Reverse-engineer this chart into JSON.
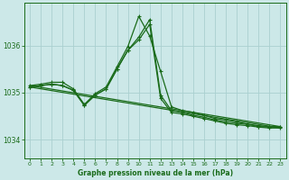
{
  "title": "Graphe pression niveau de la mer (hPa)",
  "bg_color": "#cce8e8",
  "grid_color": "#aad0d0",
  "line_color": "#1a6b1a",
  "xlim": [
    -0.5,
    23.5
  ],
  "ylim": [
    1033.6,
    1036.9
  ],
  "yticks": [
    1034,
    1035,
    1036
  ],
  "xticks": [
    0,
    1,
    2,
    3,
    4,
    5,
    6,
    7,
    8,
    9,
    10,
    11,
    12,
    13,
    14,
    15,
    16,
    17,
    18,
    19,
    20,
    21,
    22,
    23
  ],
  "line1_x": [
    0,
    1,
    2,
    3,
    4,
    5,
    6,
    7,
    8,
    9,
    10,
    11,
    12,
    13,
    14,
    15,
    16,
    17,
    18,
    19,
    20,
    21,
    22,
    23
  ],
  "line1_y": [
    1035.15,
    1035.18,
    1035.22,
    1035.22,
    1035.08,
    1034.75,
    1034.98,
    1035.12,
    1035.55,
    1035.98,
    1036.62,
    1036.2,
    1035.45,
    1034.7,
    1034.62,
    1034.58,
    1034.52,
    1034.45,
    1034.42,
    1034.38,
    1034.33,
    1034.3,
    1034.28,
    1034.28
  ],
  "line2_x": [
    0,
    1,
    2,
    3,
    4,
    5,
    6,
    7,
    8,
    9,
    10,
    11,
    12,
    13,
    14,
    15,
    16,
    17,
    18,
    19,
    20,
    21,
    22,
    23
  ],
  "line2_y": [
    1035.12,
    1035.15,
    1035.18,
    1035.15,
    1035.05,
    1034.73,
    1034.95,
    1035.08,
    1035.5,
    1035.9,
    1036.18,
    1036.55,
    1034.95,
    1034.62,
    1034.58,
    1034.52,
    1034.48,
    1034.42,
    1034.38,
    1034.35,
    1034.33,
    1034.28,
    1034.27,
    1034.27
  ],
  "line3_x": [
    0,
    1,
    2,
    3,
    4,
    5,
    6,
    7,
    8,
    9,
    10,
    11,
    12,
    13,
    14,
    15,
    16,
    17,
    18,
    19,
    20,
    21,
    22,
    23
  ],
  "line3_y": [
    1035.12,
    1035.15,
    1035.18,
    1035.15,
    1035.05,
    1034.73,
    1034.95,
    1035.08,
    1035.5,
    1035.9,
    1036.12,
    1036.45,
    1034.88,
    1034.58,
    1034.55,
    1034.5,
    1034.45,
    1034.4,
    1034.35,
    1034.32,
    1034.3,
    1034.27,
    1034.25,
    1034.25
  ],
  "trend1_x": [
    0,
    23
  ],
  "trend1_y": [
    1035.15,
    1034.28
  ],
  "trend2_x": [
    0,
    23
  ],
  "trend2_y": [
    1035.12,
    1034.25
  ]
}
